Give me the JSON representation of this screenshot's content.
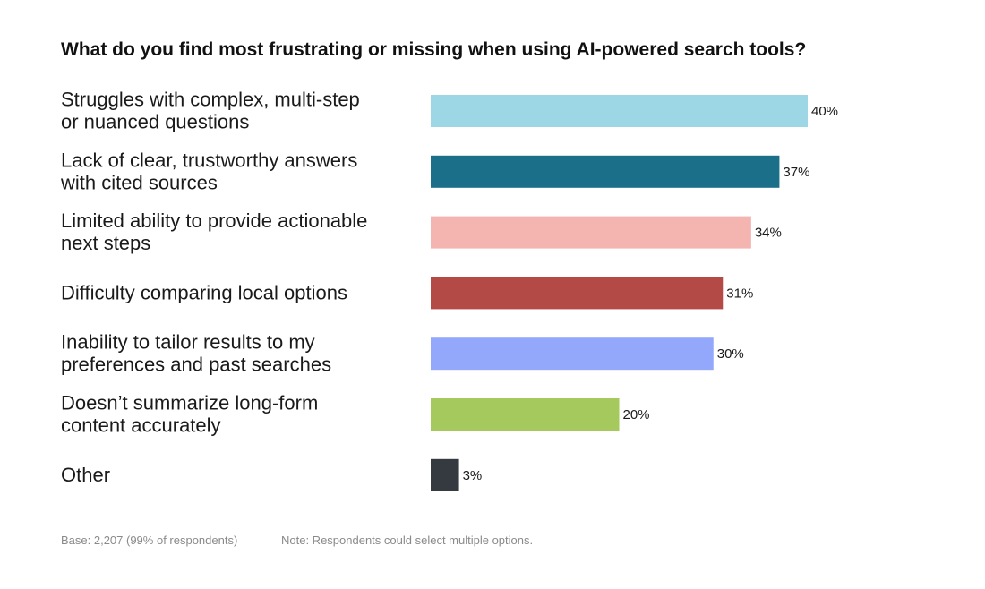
{
  "chart_data": {
    "type": "bar",
    "orientation": "horizontal",
    "title": "What do you find most frustrating or missing when using AI-powered search tools?",
    "categories": [
      [
        "Struggles with complex, multi-step",
        "or nuanced questions"
      ],
      [
        "Lack of clear, trustworthy answers",
        "with cited sources"
      ],
      [
        "Limited ability to provide actionable",
        "next steps"
      ],
      [
        "Difficulty comparing local options"
      ],
      [
        "Inability to tailor results to my",
        "preferences and past searches"
      ],
      [
        "Doesn’t summarize long-form",
        "content accurately"
      ],
      [
        "Other"
      ]
    ],
    "values": [
      40,
      37,
      34,
      31,
      30,
      20,
      3
    ],
    "value_labels": [
      "40%",
      "37%",
      "34%",
      "31%",
      "30%",
      "20%",
      "3%"
    ],
    "colors": [
      "#9dd6e4",
      "#1b6f89",
      "#f4b4b0",
      "#b34a45",
      "#93a8fb",
      "#a6c95e",
      "#343a40"
    ],
    "unit": "%",
    "xlim": [
      0,
      40
    ],
    "grid": false,
    "legend": "none"
  },
  "footnotes": {
    "base": "Base: 2,207 (99% of respondents)",
    "note": "Note: Respondents could select multiple options."
  }
}
